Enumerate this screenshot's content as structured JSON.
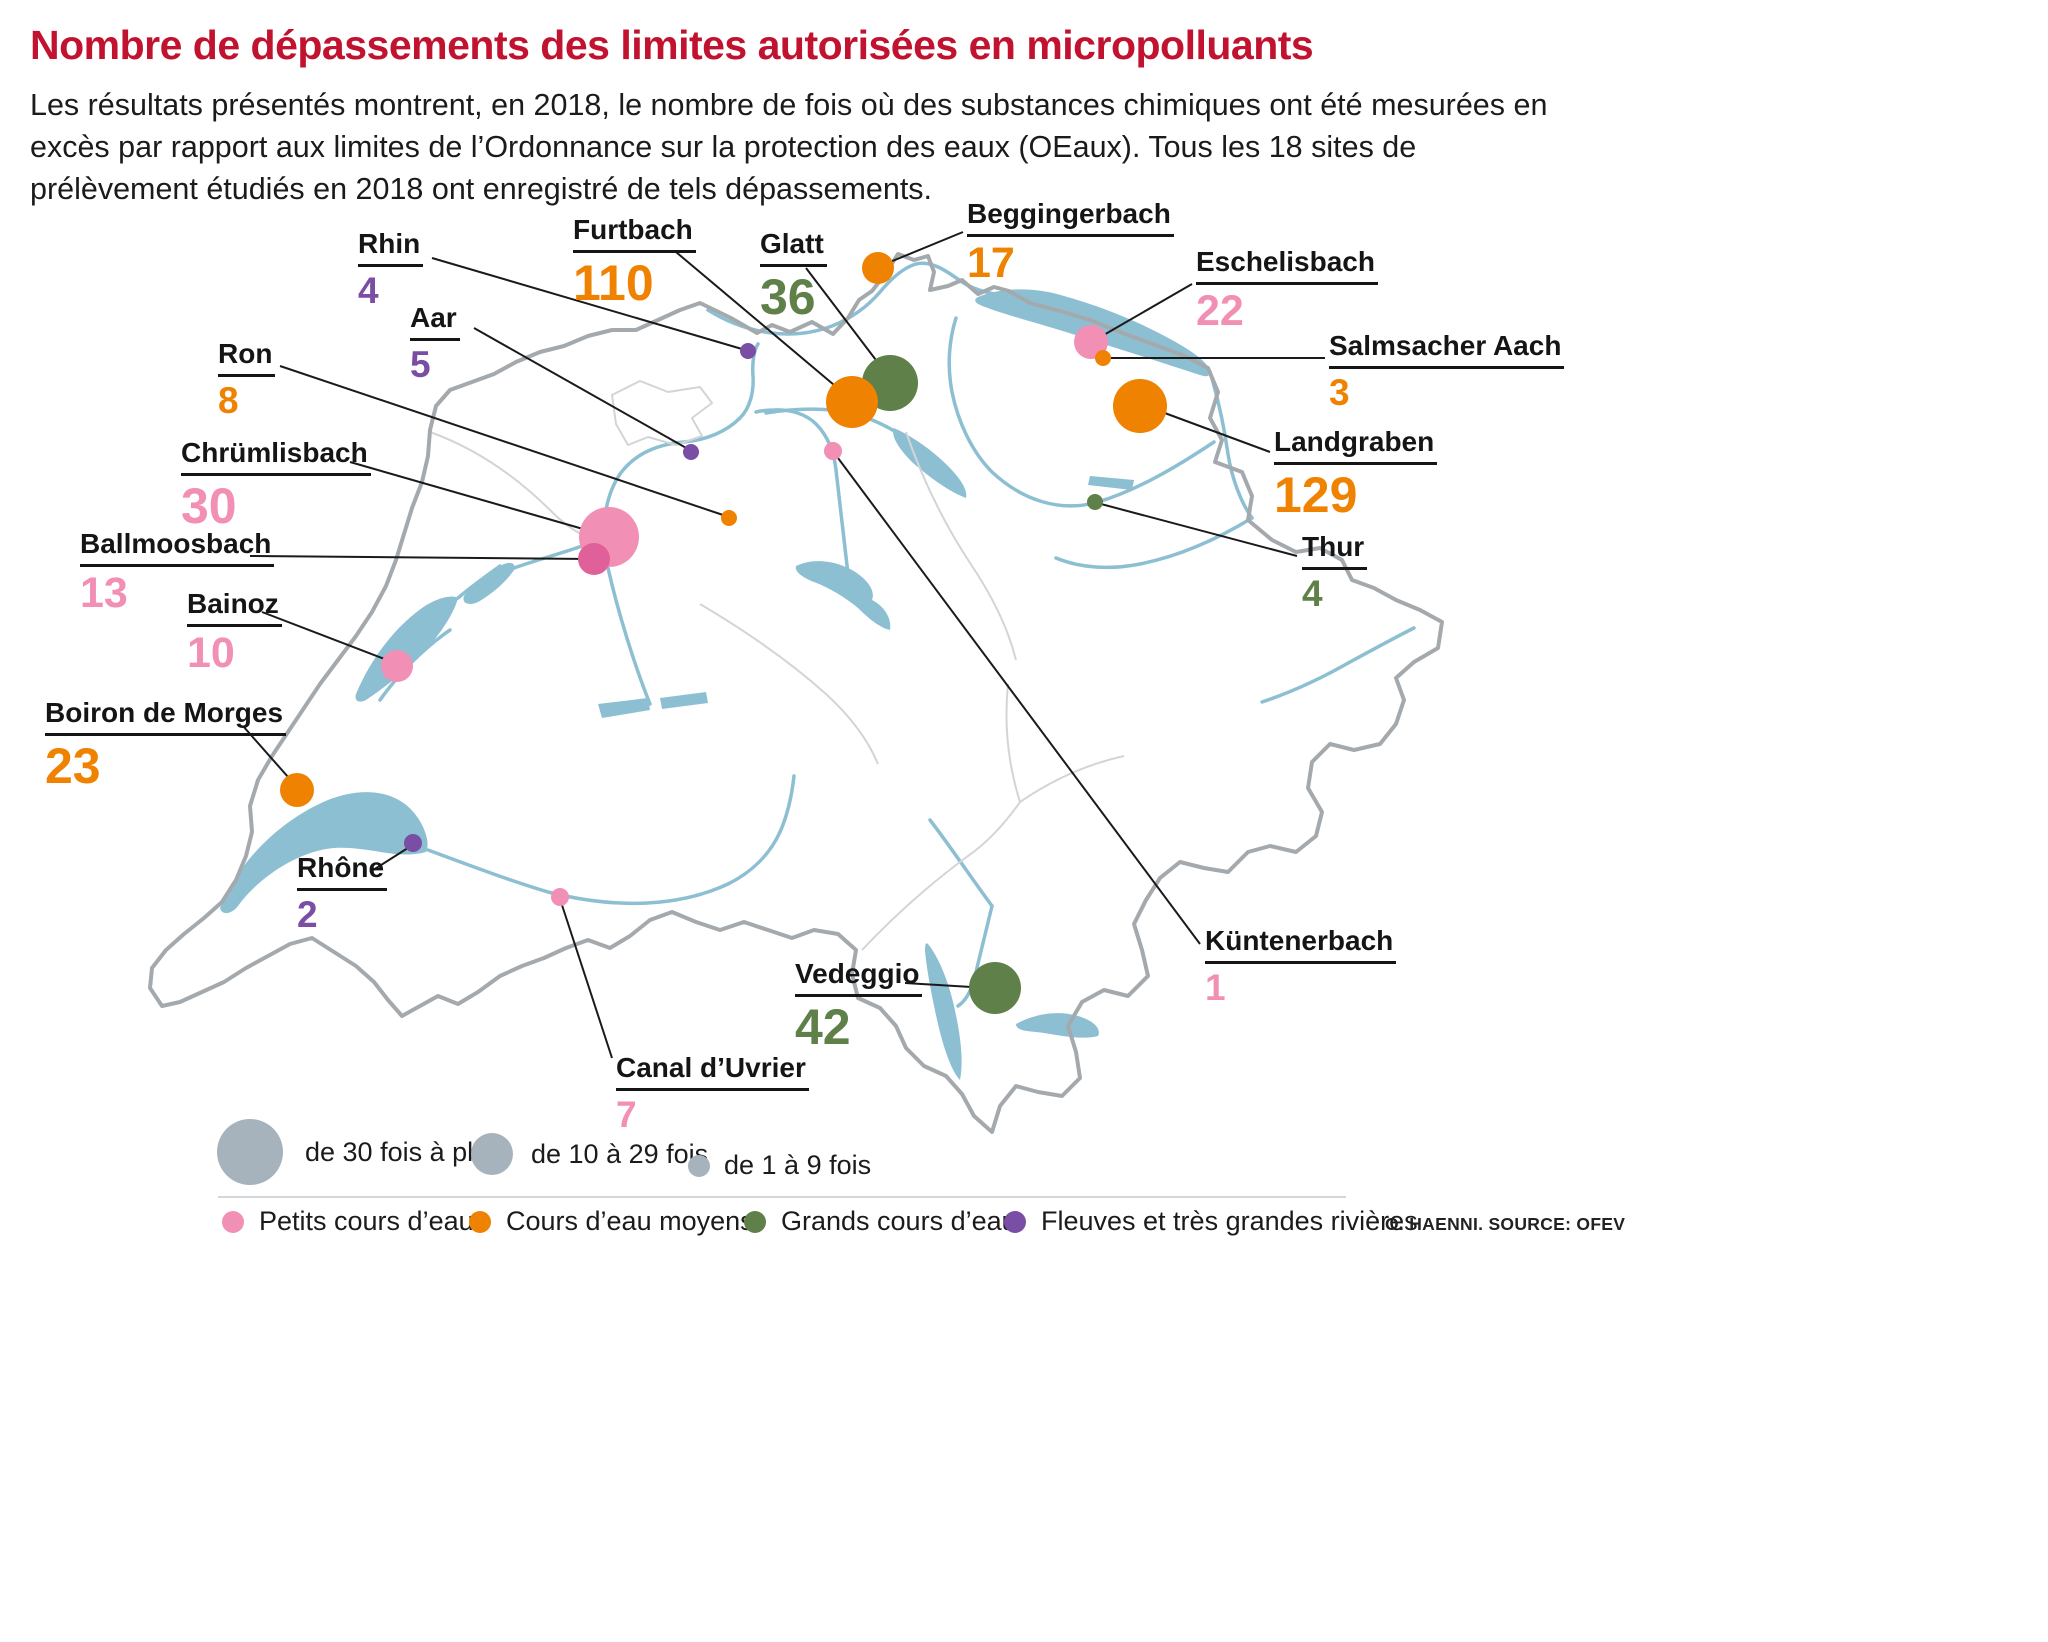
{
  "header": {
    "title": "Nombre de dépassements des limites autorisées en micropolluants",
    "intro": "Les résultats présentés montrent, en 2018, le nombre de fois où des substances chimiques ont été mesurées en excès par rapport aux limites de l’Ordonnance sur la protection des eaux (OEaux). Tous les 18 sites de prélèvement étudiés en 2018 ont enregistré de tels dépassements."
  },
  "colors": {
    "title": "#c1122f",
    "text": "#1b1b1b",
    "small_stream": "#f28fb4",
    "medium_stream": "#ef8200",
    "large_stream": "#5f8049",
    "river": "#7a4ea5",
    "overlap_pink": "#e0609a",
    "legend_gray": "#a6b3bc",
    "water": "#8dbfd2",
    "country_border": "#a4a9ad",
    "canton_border": "#d2d5d8",
    "leader_line": "#1a1a1a"
  },
  "sites": [
    {
      "name": "Rhin",
      "value": 4,
      "category": "river"
    },
    {
      "name": "Furtbach",
      "value": 110,
      "category": "medium_stream"
    },
    {
      "name": "Glatt",
      "value": 36,
      "category": "large_stream"
    },
    {
      "name": "Beggingerbach",
      "value": 17,
      "category": "medium_stream"
    },
    {
      "name": "Eschelisbach",
      "value": 22,
      "category": "small_stream"
    },
    {
      "name": "Salmsacher Aach",
      "value": 3,
      "category": "medium_stream"
    },
    {
      "name": "Landgraben",
      "value": 129,
      "category": "medium_stream"
    },
    {
      "name": "Thur",
      "value": 4,
      "category": "large_stream"
    },
    {
      "name": "Aar",
      "value": 5,
      "category": "river"
    },
    {
      "name": "Ron",
      "value": 8,
      "category": "medium_stream"
    },
    {
      "name": "Chrümlisbach",
      "value": 30,
      "category": "small_stream"
    },
    {
      "name": "Ballmoosbach",
      "value": 13,
      "category": "small_stream"
    },
    {
      "name": "Bainoz",
      "value": 10,
      "category": "small_stream"
    },
    {
      "name": "Boiron de Morges",
      "value": 23,
      "category": "medium_stream"
    },
    {
      "name": "Rhône",
      "value": 2,
      "category": "river"
    },
    {
      "name": "Canal d’Uvrier",
      "value": 7,
      "category": "small_stream"
    },
    {
      "name": "Vedeggio",
      "value": 42,
      "category": "large_stream"
    },
    {
      "name": "Küntenerbach",
      "value": 1,
      "category": "small_stream"
    }
  ],
  "legend": {
    "size": [
      {
        "label": "de 30 fois à plus",
        "range": "30+"
      },
      {
        "label": "de 10 à 29 fois",
        "range": "10-29"
      },
      {
        "label": "de 1 à 9 fois",
        "range": "1-9"
      }
    ],
    "categories": [
      {
        "label": "Petits cours d’eau",
        "category": "small_stream"
      },
      {
        "label": "Cours d’eau moyens",
        "category": "medium_stream"
      },
      {
        "label": "Grands cours d’eau",
        "category": "large_stream"
      },
      {
        "label": "Fleuves et très grandes rivières",
        "category": "river"
      }
    ]
  },
  "credit": "O. HAENNI. SOURCE: OFEV"
}
